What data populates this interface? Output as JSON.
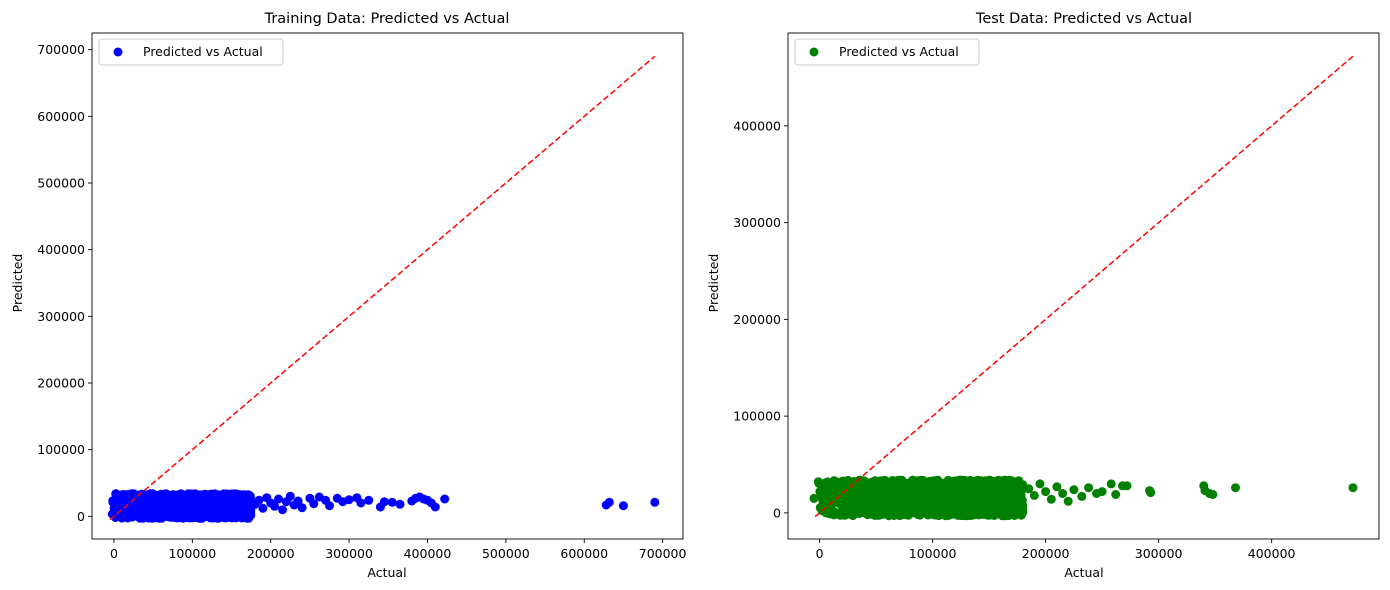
{
  "chart_data": [
    {
      "type": "scatter",
      "title": "Training Data: Predicted vs Actual",
      "xlabel": "Actual",
      "ylabel": "Predicted",
      "xlim": [
        -28000,
        726000
      ],
      "ylim": [
        -34000,
        725000
      ],
      "xticks": [
        0,
        100000,
        200000,
        300000,
        400000,
        500000,
        600000,
        700000
      ],
      "xtick_labels": [
        "0",
        "100000",
        "200000",
        "300000",
        "400000",
        "500000",
        "600000",
        "700000"
      ],
      "yticks": [
        0,
        100000,
        200000,
        300000,
        400000,
        500000,
        600000,
        700000
      ],
      "ytick_labels": [
        "0",
        "100000",
        "200000",
        "300000",
        "400000",
        "500000",
        "600000",
        "700000"
      ],
      "legend": {
        "label": "Predicted vs Actual",
        "location": "upper-left"
      },
      "marker_color": "#0000ff",
      "reference_line": {
        "from": [
          -5000,
          -5000
        ],
        "to": [
          690000,
          690000
        ],
        "color": "#ff0000",
        "style": "dashed"
      },
      "dense_band": {
        "x_range": [
          -3000,
          175000
        ],
        "y_range": [
          -3000,
          34000
        ]
      },
      "series": [
        {
          "name": "Predicted vs Actual",
          "points": [
            [
              180000,
              18000
            ],
            [
              185000,
              24000
            ],
            [
              190000,
              12000
            ],
            [
              195000,
              28000
            ],
            [
              200000,
              20000
            ],
            [
              205000,
              15000
            ],
            [
              210000,
              26000
            ],
            [
              215000,
              10000
            ],
            [
              220000,
              22000
            ],
            [
              225000,
              30000
            ],
            [
              230000,
              17000
            ],
            [
              235000,
              23000
            ],
            [
              240000,
              13000
            ],
            [
              250000,
              27000
            ],
            [
              255000,
              19000
            ],
            [
              262000,
              29000
            ],
            [
              270000,
              24000
            ],
            [
              275000,
              16000
            ],
            [
              285000,
              27000
            ],
            [
              292000,
              22000
            ],
            [
              300000,
              25000
            ],
            [
              310000,
              28000
            ],
            [
              315000,
              20000
            ],
            [
              325000,
              24000
            ],
            [
              340000,
              14000
            ],
            [
              345000,
              22000
            ],
            [
              355000,
              21000
            ],
            [
              365000,
              18000
            ],
            [
              380000,
              23000
            ],
            [
              385000,
              27000
            ],
            [
              390000,
              29000
            ],
            [
              395000,
              26000
            ],
            [
              400000,
              24000
            ],
            [
              405000,
              20000
            ],
            [
              410000,
              14000
            ],
            [
              422000,
              26000
            ],
            [
              628000,
              17000
            ],
            [
              632000,
              21000
            ],
            [
              650000,
              16000
            ],
            [
              690000,
              21000
            ]
          ]
        }
      ]
    },
    {
      "type": "scatter",
      "title": "Test Data: Predicted vs Actual",
      "xlabel": "Actual",
      "ylabel": "Predicted",
      "xlim": [
        -28000,
        495000
      ],
      "ylim": [
        -27000,
        496000
      ],
      "xticks": [
        0,
        100000,
        200000,
        300000,
        400000
      ],
      "xtick_labels": [
        "0",
        "100000",
        "200000",
        "300000",
        "400000"
      ],
      "yticks": [
        0,
        100000,
        200000,
        300000,
        400000
      ],
      "ytick_labels": [
        "0",
        "100000",
        "200000",
        "300000",
        "400000"
      ],
      "legend": {
        "label": "Predicted vs Actual",
        "location": "upper-left"
      },
      "marker_color": "#008000",
      "reference_line": {
        "from": [
          -4000,
          -4000
        ],
        "to": [
          472000,
          472000
        ],
        "color": "#ff0000",
        "style": "dashed"
      },
      "dense_band": {
        "x_range": [
          -3000,
          180000
        ],
        "y_range": [
          -3000,
          34000
        ]
      },
      "series": [
        {
          "name": "Predicted vs Actual",
          "points": [
            [
              -5000,
              15000
            ],
            [
              185000,
              25000
            ],
            [
              190000,
              18000
            ],
            [
              195000,
              30000
            ],
            [
              200000,
              22000
            ],
            [
              205000,
              14000
            ],
            [
              210000,
              27000
            ],
            [
              215000,
              20000
            ],
            [
              220000,
              12000
            ],
            [
              225000,
              24000
            ],
            [
              232000,
              17000
            ],
            [
              238000,
              26000
            ],
            [
              245000,
              20000
            ],
            [
              250000,
              22000
            ],
            [
              258000,
              30000
            ],
            [
              262000,
              19000
            ],
            [
              268000,
              28000
            ],
            [
              272000,
              28000
            ],
            [
              292000,
              23000
            ],
            [
              293000,
              21000
            ],
            [
              340000,
              28000
            ],
            [
              341000,
              23000
            ],
            [
              345000,
              20000
            ],
            [
              348000,
              19000
            ],
            [
              368000,
              26000
            ],
            [
              472000,
              26000
            ]
          ]
        }
      ]
    }
  ]
}
